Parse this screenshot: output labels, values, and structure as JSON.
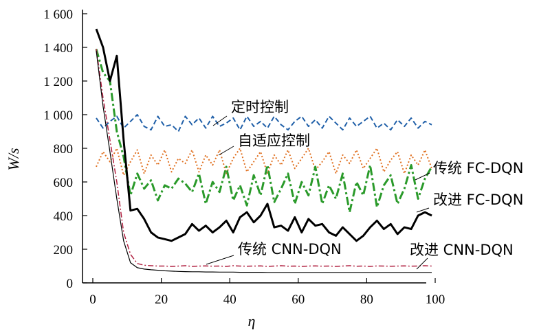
{
  "chart_data": {
    "type": "line",
    "xlabel": "η",
    "ylabel": "W/s",
    "xlim": [
      0,
      100
    ],
    "ylim": [
      0,
      1600
    ],
    "x_ticks": [
      0,
      20,
      40,
      60,
      80,
      100
    ],
    "y_ticks": [
      0,
      200,
      400,
      600,
      800,
      1000,
      1200,
      1400,
      1600
    ],
    "x_tick_labels": [
      "0",
      "20",
      "40",
      "60",
      "80",
      "100"
    ],
    "y_tick_labels": [
      "0",
      "200",
      "400",
      "600",
      "800",
      "1 000",
      "1 200",
      "1 400",
      "1 600"
    ],
    "grid": false,
    "x": [
      1,
      3,
      5,
      7,
      9,
      11,
      13,
      15,
      17,
      19,
      21,
      23,
      25,
      27,
      29,
      31,
      33,
      35,
      37,
      39,
      41,
      43,
      45,
      47,
      49,
      51,
      53,
      55,
      57,
      59,
      61,
      63,
      65,
      67,
      69,
      71,
      73,
      75,
      77,
      79,
      81,
      83,
      85,
      87,
      89,
      91,
      93,
      95,
      97,
      99
    ],
    "series": [
      {
        "color": "#1f5fa8",
        "dash": "7,4",
        "width": 2,
        "values": [
          980,
          920,
          960,
          990,
          920,
          960,
          1000,
          930,
          910,
          990,
          930,
          940,
          900,
          990,
          940,
          980,
          920,
          990,
          930,
          950,
          980,
          910,
          990,
          930,
          960,
          920,
          990,
          940,
          910,
          960,
          990,
          930,
          970,
          920,
          990,
          950,
          910,
          980,
          930,
          960,
          990,
          920,
          950,
          910,
          970,
          930,
          980,
          920,
          960,
          940
        ]
      },
      {
        "color": "#e07020",
        "dash": "2,3",
        "width": 2,
        "values": [
          690,
          780,
          720,
          800,
          640,
          720,
          790,
          650,
          760,
          700,
          790,
          660,
          740,
          710,
          790,
          660,
          760,
          700,
          790,
          650,
          740,
          800,
          660,
          720,
          780,
          650,
          760,
          700,
          790,
          680,
          740,
          800,
          670,
          720,
          780,
          650,
          760,
          710,
          790,
          680,
          740,
          800,
          660,
          730,
          780,
          650,
          760,
          700,
          790,
          680
        ]
      },
      {
        "color": "#2a9a2a",
        "dash": "12,4,3,4",
        "width": 3,
        "values": [
          1390,
          1250,
          1200,
          900,
          750,
          520,
          650,
          560,
          610,
          490,
          580,
          560,
          620,
          590,
          540,
          650,
          470,
          600,
          540,
          690,
          490,
          580,
          460,
          640,
          520,
          700,
          480,
          560,
          650,
          470,
          600,
          520,
          690,
          470,
          580,
          500,
          650,
          420,
          600,
          520,
          700,
          450,
          580,
          640,
          470,
          560,
          700,
          500,
          620,
          690
        ]
      },
      {
        "color": "#000000",
        "dash": "",
        "width": 3,
        "values": [
          1510,
          1400,
          1200,
          1350,
          850,
          430,
          440,
          380,
          300,
          270,
          260,
          250,
          270,
          290,
          350,
          310,
          340,
          300,
          330,
          370,
          300,
          390,
          420,
          360,
          400,
          470,
          330,
          340,
          310,
          390,
          300,
          380,
          340,
          350,
          300,
          280,
          330,
          290,
          250,
          280,
          330,
          370,
          320,
          350,
          290,
          330,
          320,
          400,
          420,
          400
        ]
      },
      {
        "color": "#b02040",
        "dash": "8,3,2,3",
        "width": 1.5,
        "values": [
          1390,
          1100,
          850,
          600,
          300,
          170,
          115,
          105,
          102,
          100,
          100,
          98,
          100,
          102,
          98,
          100,
          101,
          99,
          100,
          98,
          102,
          100,
          99,
          100,
          101,
          98,
          100,
          102,
          99,
          100,
          98,
          100,
          101,
          99,
          100,
          98,
          100,
          102,
          99,
          100,
          98,
          101,
          100,
          99,
          100,
          101,
          99,
          100,
          102,
          100
        ]
      },
      {
        "color": "#000000",
        "dash": "",
        "width": 1.2,
        "values": [
          1380,
          1050,
          780,
          500,
          250,
          120,
          90,
          82,
          78,
          75,
          72,
          70,
          68,
          67,
          66,
          66,
          65,
          65,
          64,
          64,
          64,
          63,
          63,
          63,
          63,
          62,
          62,
          62,
          62,
          62,
          62,
          62,
          62,
          62,
          62,
          62,
          62,
          62,
          62,
          62,
          62,
          62,
          62,
          62,
          62,
          62,
          62,
          62,
          62,
          62
        ]
      }
    ],
    "annotations": [
      "定时控制",
      "自适应控制",
      "传统 FC-DQN",
      "改进 FC-DQN",
      "传统 CNN-DQN",
      "改进 CNN-DQN"
    ]
  }
}
